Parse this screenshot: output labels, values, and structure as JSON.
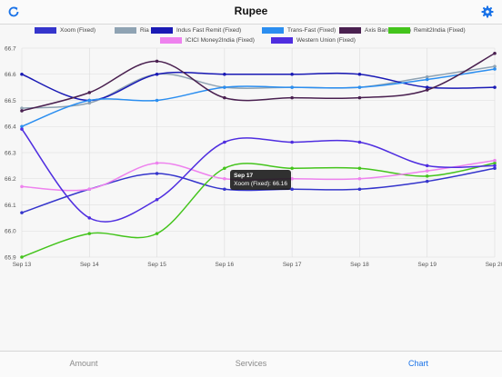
{
  "header": {
    "title": "Rupee",
    "refresh_icon": "refresh-icon",
    "settings_icon": "gear-icon"
  },
  "tabs": [
    {
      "label": "Amount"
    },
    {
      "label": "Services"
    },
    {
      "label": "Chart"
    }
  ],
  "active_tab": 2,
  "tooltip": {
    "title": "Sep 17",
    "line": "Xoom (Fixed): 66.16"
  },
  "chart_data": {
    "type": "line",
    "x": [
      "Sep 13",
      "Sep 14",
      "Sep 15",
      "Sep 16",
      "Sep 17",
      "Sep 18",
      "Sep 19",
      "Sep 20"
    ],
    "ylim": [
      65.9,
      66.7
    ],
    "yticks": [
      "65.9",
      "66.0",
      "66.1",
      "66.2",
      "66.3",
      "66.4",
      "66.5",
      "66.6",
      "66.7"
    ],
    "grid": true,
    "legend_position": "top",
    "series": [
      {
        "name": "Xoom (Fixed)",
        "color": "#3535cc",
        "values": [
          66.07,
          66.16,
          66.22,
          66.16,
          66.16,
          66.16,
          66.19,
          66.24
        ]
      },
      {
        "name": "Ria (Fixed)",
        "color": "#8fa3b3",
        "values": [
          66.47,
          66.49,
          66.6,
          66.55,
          66.55,
          66.55,
          66.59,
          66.63
        ]
      },
      {
        "name": "Indus Fast Remit (Fixed)",
        "color": "#1a1ab5",
        "values": [
          66.6,
          66.5,
          66.6,
          66.6,
          66.6,
          66.6,
          66.55,
          66.55
        ]
      },
      {
        "name": "Trans-Fast (Fixed)",
        "color": "#2b8ef0",
        "values": [
          66.4,
          66.5,
          66.5,
          66.55,
          66.55,
          66.55,
          66.58,
          66.62
        ]
      },
      {
        "name": "Axis Bank (Fixed)",
        "color": "#4a2050",
        "values": [
          66.46,
          66.53,
          66.65,
          66.51,
          66.51,
          66.51,
          66.54,
          66.68
        ]
      },
      {
        "name": "Remit2India (Fixed)",
        "color": "#44c41c",
        "values": [
          65.9,
          65.99,
          65.99,
          66.24,
          66.24,
          66.24,
          66.21,
          66.26
        ]
      },
      {
        "name": "ICICI Money2India (Fixed)",
        "color": "#ee82ee",
        "values": [
          66.17,
          66.16,
          66.26,
          66.2,
          66.2,
          66.2,
          66.23,
          66.27
        ]
      },
      {
        "name": "Western Union (Fixed)",
        "color": "#4f2ee0",
        "values": [
          66.39,
          66.05,
          66.12,
          66.34,
          66.34,
          66.34,
          66.25,
          66.25
        ]
      }
    ]
  }
}
